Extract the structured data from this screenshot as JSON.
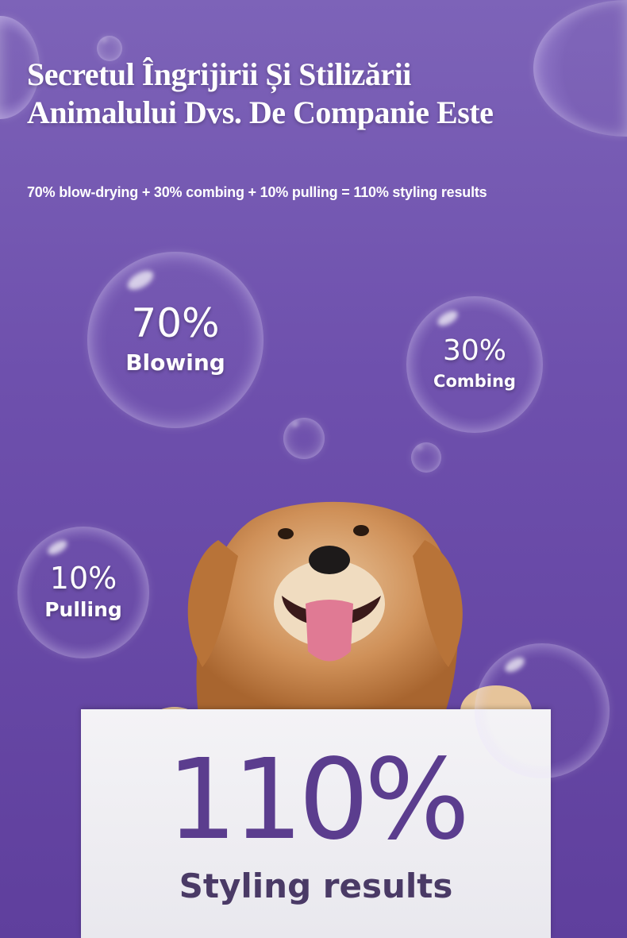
{
  "header": {
    "title_line1": "Secretul Îngrijirii Și Stilizării",
    "title_line2": "Animalului Dvs. De Companie Este",
    "formula": "70% blow-drying + 30% combing + 10% pulling = 110% styling results"
  },
  "bubbles": [
    {
      "percent": "70%",
      "label": "Blowing"
    },
    {
      "percent": "30%",
      "label": "Combing"
    },
    {
      "percent": "10%",
      "label": "Pulling"
    }
  ],
  "sign": {
    "percent": "110%",
    "label": "Styling results"
  },
  "colors": {
    "background": "#6e50ad",
    "accent": "#5b3d8e"
  }
}
